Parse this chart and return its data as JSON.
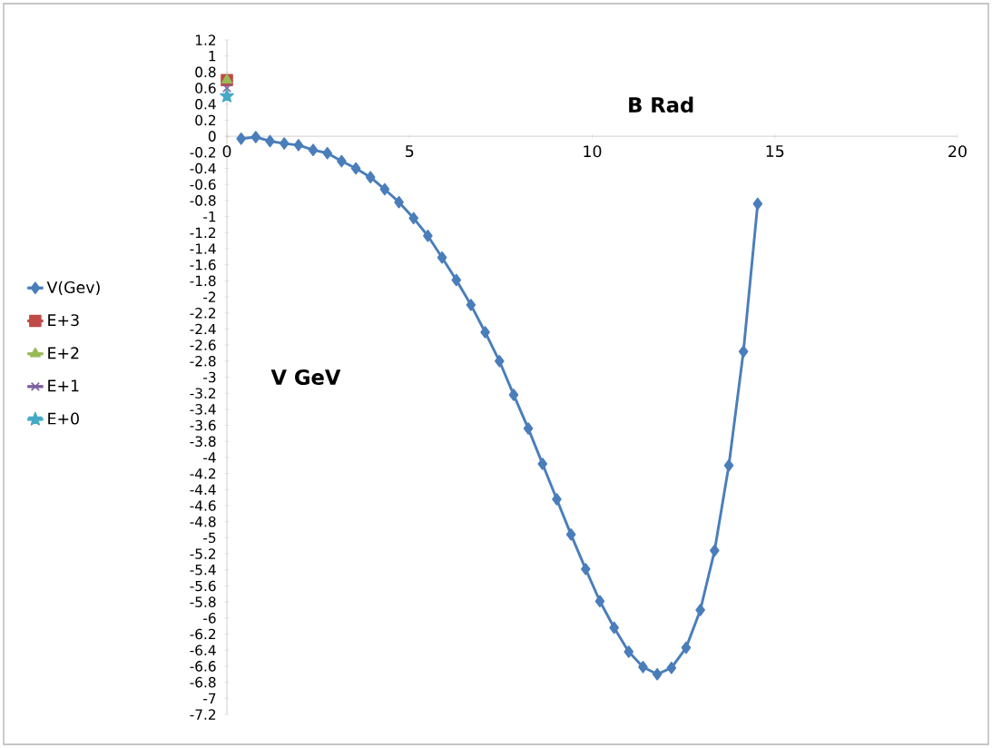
{
  "chart_data": {
    "type": "line",
    "xlabel": "B   Rad",
    "ylabel": "V   GeV",
    "xlim": [
      0,
      20
    ],
    "xticks": [
      0,
      5,
      10,
      15,
      20
    ],
    "ylim": [
      -7.2,
      1.2
    ],
    "yticks": [
      1.2,
      1,
      0.8,
      0.6,
      0.4,
      0.2,
      0,
      -0.2,
      -0.4,
      -0.6,
      -0.8,
      -1,
      -1.2,
      -1.4,
      -1.6,
      -1.8,
      -2,
      -2.2,
      -2.4,
      -2.6,
      -2.8,
      -3,
      -3.2,
      -3.4,
      -3.6,
      -3.8,
      -4,
      -4.2,
      -4.4,
      -4.6,
      -4.8,
      -5,
      -5.2,
      -5.4,
      -5.6,
      -5.8,
      -6,
      -6.2,
      -6.4,
      -6.6,
      -6.8,
      -7,
      -7.2
    ],
    "legend": "left",
    "series": [
      {
        "name": "V(Gev)",
        "color": "#4a7ebb",
        "marker": "diamond",
        "x": [
          0.39,
          0.79,
          1.18,
          1.57,
          1.96,
          2.36,
          2.75,
          3.14,
          3.53,
          3.93,
          4.32,
          4.71,
          5.11,
          5.5,
          5.89,
          6.28,
          6.68,
          7.07,
          7.46,
          7.85,
          8.25,
          8.64,
          9.03,
          9.42,
          9.82,
          10.21,
          10.6,
          11.0,
          11.39,
          11.78,
          12.17,
          12.57,
          12.96,
          13.35,
          13.74,
          14.14,
          14.53
        ],
        "values": [
          -0.03,
          -0.01,
          -0.06,
          -0.09,
          -0.11,
          -0.17,
          -0.21,
          -0.31,
          -0.4,
          -0.51,
          -0.66,
          -0.82,
          -1.02,
          -1.24,
          -1.51,
          -1.79,
          -2.1,
          -2.44,
          -2.8,
          -3.22,
          -3.64,
          -4.08,
          -4.52,
          -4.96,
          -5.39,
          -5.79,
          -6.12,
          -6.42,
          -6.61,
          -6.7,
          -6.62,
          -6.37,
          -5.9,
          -5.16,
          -4.1,
          -2.68,
          -0.84
        ]
      },
      {
        "name": "E+3",
        "color": "#be4b48",
        "marker": "square",
        "x": [
          0
        ],
        "values": [
          0.7
        ]
      },
      {
        "name": "E+2",
        "color": "#98b954",
        "marker": "triangle",
        "x": [
          0
        ],
        "values": [
          0.7
        ]
      },
      {
        "name": "E+1",
        "color": "#7d60a0",
        "marker": "cross",
        "x": [
          0
        ],
        "values": [
          0.6
        ]
      },
      {
        "name": "E+0",
        "color": "#46aac5",
        "marker": "star",
        "x": [
          0
        ],
        "values": [
          0.5
        ]
      }
    ]
  }
}
